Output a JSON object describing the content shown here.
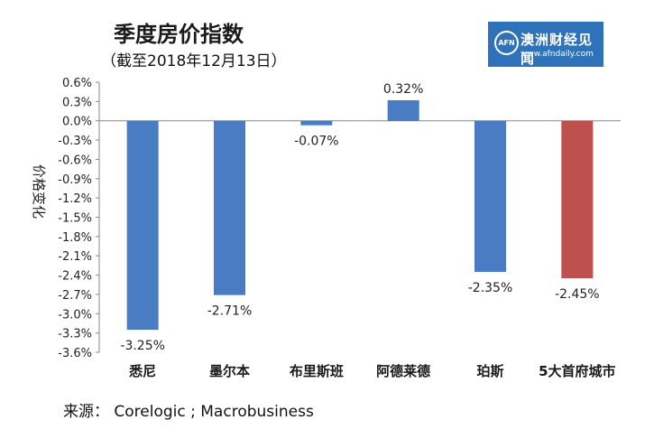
{
  "header": {
    "title": "季度房价指数",
    "subtitle": "（截至2018年12月13日）"
  },
  "logo": {
    "mark": "AFN",
    "brand": "澳洲财经见闻",
    "url": "www.afndaily.com"
  },
  "footer": {
    "source": "来源：  Corelogic ; Macrobusiness"
  },
  "chart_data": {
    "type": "bar",
    "title": "季度房价指数",
    "subtitle": "（截至2018年12月13日）",
    "ylabel": "价格变化",
    "xlabel": "",
    "categories": [
      "悉尼",
      "墨尔本",
      "布里斯班",
      "阿德莱德",
      "珀斯",
      "5大首府城市"
    ],
    "values": [
      -3.25,
      -2.71,
      -0.07,
      0.32,
      -2.35,
      -2.45
    ],
    "value_labels": [
      "-3.25%",
      "-2.71%",
      "-0.07%",
      "0.32%",
      "-2.35%",
      "-2.45%"
    ],
    "ylim": [
      -3.6,
      0.6
    ],
    "yticks": [
      "0.6%",
      "0.3%",
      "0.0%",
      "-0.3%",
      "-0.6%",
      "-0.9%",
      "-1.2%",
      "-1.5%",
      "-1.8%",
      "-2.1%",
      "-2.4%",
      "-2.7%",
      "-3.0%",
      "-3.3%",
      "-3.6%"
    ],
    "ytick_values": [
      0.6,
      0.3,
      0.0,
      -0.3,
      -0.6,
      -0.9,
      -1.2,
      -1.5,
      -1.8,
      -2.1,
      -2.4,
      -2.7,
      -3.0,
      -3.3,
      -3.6
    ],
    "colors": [
      "#4a7cc4",
      "#4a7cc4",
      "#4a7cc4",
      "#4a7cc4",
      "#4a7cc4",
      "#c0504d"
    ],
    "grid": false,
    "legend": "none"
  }
}
